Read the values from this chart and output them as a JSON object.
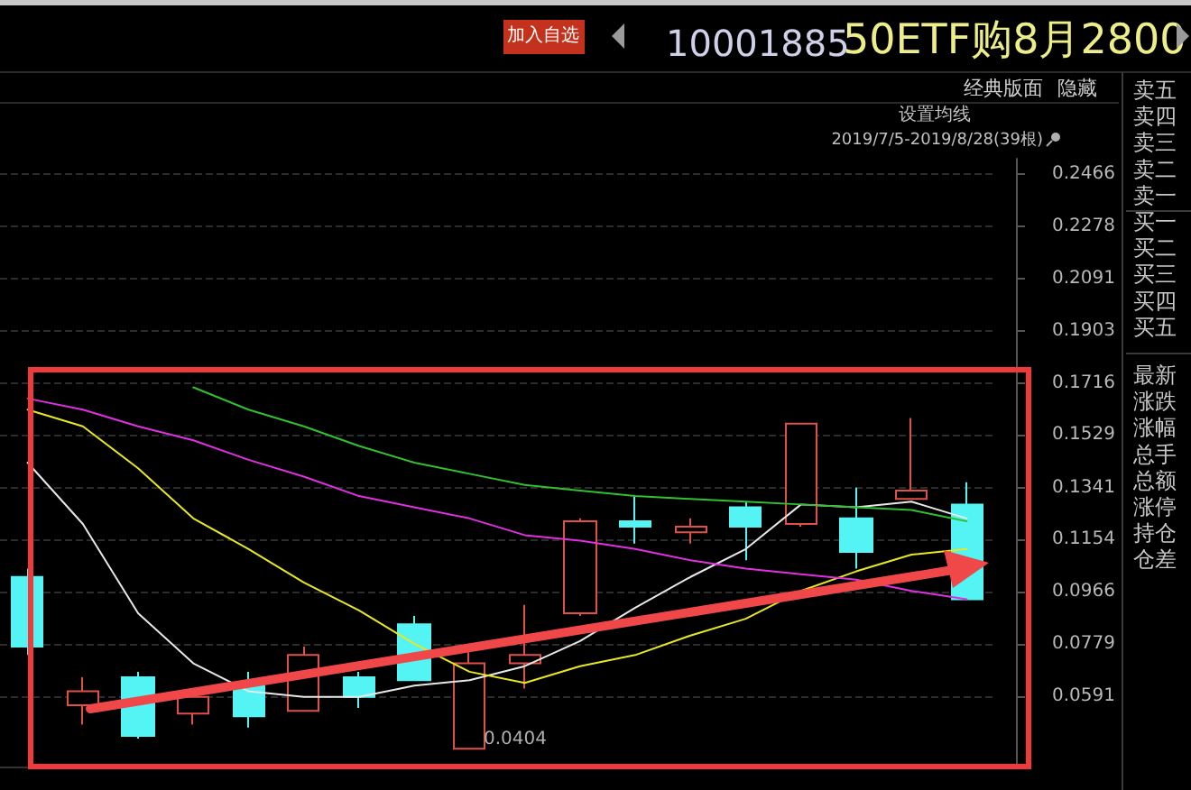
{
  "chart_data": {
    "type": "candlestick",
    "title": "50ETF购8月2800",
    "subtitle": "10001885",
    "categories": [
      null,
      null,
      null,
      null,
      null,
      null,
      null,
      null,
      null,
      null,
      null,
      null,
      null,
      null,
      null,
      null,
      null,
      null
    ],
    "series": [
      {
        "colors": [
          "#54f4f4",
          "#e0504a",
          "#54f4f4",
          "#e0504a",
          "#54f4f4",
          "#e0504a",
          "#54f4f4",
          "#54f4f4",
          "#e0504a",
          "#e0504a",
          "#e0504a",
          "#54f4f4",
          "#e0504a",
          "#54f4f4",
          "#e0504a",
          "#54f4f4",
          "#e0504a",
          "#54f4f4"
        ],
        "ohlc": [
          [
            0.102,
            0.105,
            0.074,
            0.077
          ],
          [
            0.056,
            0.066,
            0.049,
            0.061
          ],
          [
            0.066,
            0.068,
            0.044,
            0.045
          ],
          [
            0.053,
            0.061,
            0.049,
            0.059
          ],
          [
            0.064,
            0.068,
            0.048,
            0.052
          ],
          [
            0.054,
            0.077,
            0.054,
            0.074
          ],
          [
            0.066,
            0.068,
            0.055,
            0.059
          ],
          [
            0.085,
            0.088,
            0.065,
            0.065
          ],
          [
            0.0404,
            0.075,
            0.0404,
            0.071
          ],
          [
            0.071,
            0.092,
            0.062,
            0.074
          ],
          [
            0.089,
            0.123,
            0.088,
            0.122
          ],
          [
            0.122,
            0.131,
            0.114,
            0.12
          ],
          [
            0.118,
            0.123,
            0.114,
            0.12
          ],
          [
            0.127,
            0.129,
            0.108,
            0.12
          ],
          [
            0.121,
            0.157,
            0.12,
            0.157
          ],
          [
            0.123,
            0.134,
            0.105,
            0.111
          ],
          [
            0.13,
            0.159,
            0.13,
            0.133
          ],
          [
            0.128,
            0.136,
            0.094,
            0.094
          ]
        ]
      },
      {
        "type": "line",
        "color": "#e8e8e8",
        "values": [
          0.143,
          0.121,
          0.089,
          0.071,
          0.061,
          0.059,
          0.059,
          0.063,
          0.065,
          0.07,
          0.079,
          0.091,
          0.102,
          0.112,
          0.128,
          0.127,
          0.129,
          0.123
        ]
      },
      {
        "type": "line",
        "color": "#e8e820",
        "values": [
          0.162,
          0.156,
          0.141,
          0.123,
          0.112,
          0.1,
          0.09,
          0.078,
          0.068,
          0.064,
          0.07,
          0.074,
          0.081,
          0.087,
          0.097,
          0.104,
          0.11,
          0.112
        ]
      },
      {
        "type": "line",
        "color": "#e030e0",
        "values": [
          0.166,
          0.162,
          0.156,
          0.151,
          0.144,
          0.138,
          0.131,
          0.127,
          0.123,
          0.117,
          0.115,
          0.112,
          0.108,
          0.105,
          0.103,
          0.101,
          0.097,
          0.094
        ]
      },
      {
        "type": "line",
        "color": "#30c030",
        "values": [
          null,
          null,
          null,
          0.17,
          0.162,
          0.156,
          0.149,
          0.143,
          0.139,
          0.135,
          0.133,
          0.131,
          0.13,
          0.129,
          0.128,
          0.127,
          0.126,
          0.122
        ]
      }
    ],
    "ylim": [
      0.034,
      0.252
    ],
    "yticks": [
      0.0591,
      0.0779,
      0.0966,
      0.1154,
      0.1341,
      0.1529,
      0.1716,
      0.1903,
      0.2091,
      0.2278,
      0.2466
    ],
    "grid": "y",
    "marker": "none",
    "line_style": "solid",
    "annotations": [
      "加入自选",
      "经典版面",
      "隐藏",
      "设置均线",
      "2019/7/5-2019/8/28(39根)",
      "卖五",
      "卖四",
      "卖三",
      "卖二",
      "卖一",
      "买一",
      "买二",
      "买三",
      "买四",
      "买五",
      "最新",
      "涨跌",
      "涨幅",
      "总手",
      "总额",
      "涨停",
      "持仓",
      "仓差",
      "0.0404"
    ]
  }
}
